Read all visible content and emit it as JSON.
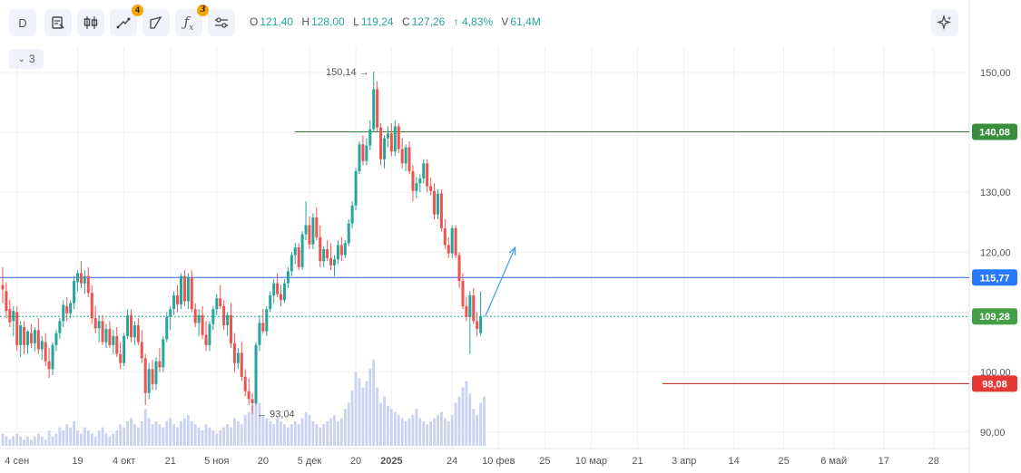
{
  "toolbar": {
    "interval": "D",
    "indicators_badge": "4",
    "formula_badge": "3",
    "collapse_count": "3"
  },
  "ohlc": {
    "o_label": "O",
    "o": "121,40",
    "h_label": "H",
    "h": "128,00",
    "l_label": "L",
    "l": "119,24",
    "c_label": "C",
    "c": "127,26",
    "change": "↑ 4,83%",
    "v_label": "V",
    "v": "61,4M"
  },
  "colors": {
    "up": "#26a69a",
    "down": "#ef5350",
    "volume": "#c9d3f0",
    "hline_green": "#2e7d32",
    "hline_blue": "#2962ff",
    "hline_dotted": "#26a69a",
    "hline_red": "#b71c1c",
    "arrow": "#4aa3df"
  },
  "chart_data": {
    "type": "candlestick",
    "ylim": [
      88,
      153
    ],
    "y_ticks": [
      "150,00",
      "140,00",
      "130,00",
      "120,00",
      "110,00",
      "100,00",
      "90,00"
    ],
    "y_tick_values": [
      150,
      140,
      130,
      120,
      110,
      100,
      90
    ],
    "x_ticks": [
      "4 сен",
      "19",
      "4 окт",
      "21",
      "5 ноя",
      "20",
      "5 дек",
      "20",
      "2025",
      "24",
      "10 фев",
      "25",
      "10 мар",
      "21",
      "3 апр",
      "14",
      "25",
      "6 май",
      "17",
      "28"
    ],
    "x_tick_index": [
      4,
      21,
      34,
      47,
      60,
      73,
      86,
      99,
      109,
      126,
      139,
      152,
      165,
      178,
      191,
      205,
      219,
      233,
      247,
      261
    ],
    "candles": [
      [
        114.5,
        117.5,
        111.5,
        113.8
      ],
      [
        113.5,
        115.0,
        109.0,
        110.2
      ],
      [
        110.5,
        112.0,
        107.5,
        108.3
      ],
      [
        108.5,
        111.0,
        106.0,
        110.2
      ],
      [
        110.0,
        111.0,
        103.5,
        104.5
      ],
      [
        104.5,
        108.5,
        102.5,
        107.8
      ],
      [
        107.5,
        108.5,
        103.0,
        104.5
      ],
      [
        104.5,
        107.0,
        103.0,
        106.8
      ],
      [
        106.5,
        108.0,
        104.0,
        104.8
      ],
      [
        104.8,
        107.5,
        103.5,
        107.0
      ],
      [
        107.0,
        109.0,
        103.0,
        103.8
      ],
      [
        103.8,
        106.0,
        102.0,
        105.2
      ],
      [
        105.0,
        106.5,
        101.0,
        101.8
      ],
      [
        101.8,
        104.0,
        99.0,
        100.5
      ],
      [
        100.5,
        105.0,
        99.5,
        104.5
      ],
      [
        104.5,
        107.0,
        103.5,
        106.5
      ],
      [
        106.5,
        109.0,
        105.5,
        108.5
      ],
      [
        108.5,
        112.0,
        107.5,
        111.2
      ],
      [
        111.0,
        112.5,
        108.5,
        109.8
      ],
      [
        109.8,
        112.0,
        109.0,
        111.5
      ],
      [
        111.5,
        116.0,
        110.5,
        115.2
      ],
      [
        115.0,
        117.0,
        113.5,
        116.5
      ],
      [
        116.5,
        118.5,
        114.0,
        114.8
      ],
      [
        114.8,
        117.0,
        113.0,
        116.0
      ],
      [
        116.0,
        117.5,
        112.5,
        113.2
      ],
      [
        113.2,
        114.5,
        108.0,
        109.0
      ],
      [
        109.0,
        111.0,
        106.5,
        107.3
      ],
      [
        107.3,
        109.5,
        105.0,
        108.5
      ],
      [
        108.5,
        109.5,
        104.5,
        105.0
      ],
      [
        105.0,
        108.0,
        104.0,
        107.2
      ],
      [
        107.2,
        108.5,
        104.0,
        104.5
      ],
      [
        104.5,
        107.0,
        103.0,
        106.0
      ],
      [
        106.0,
        107.5,
        102.5,
        103.0
      ],
      [
        103.0,
        105.0,
        100.5,
        101.5
      ],
      [
        101.5,
        106.5,
        101.0,
        106.0
      ],
      [
        106.0,
        110.5,
        105.5,
        109.5
      ],
      [
        109.5,
        110.5,
        105.0,
        105.8
      ],
      [
        105.8,
        108.5,
        104.5,
        107.8
      ],
      [
        107.8,
        109.0,
        104.5,
        105.0
      ],
      [
        105.0,
        107.0,
        101.5,
        102.3
      ],
      [
        102.3,
        103.0,
        94.5,
        96.5
      ],
      [
        96.5,
        101.5,
        95.5,
        100.5
      ],
      [
        100.5,
        102.0,
        97.0,
        98.0
      ],
      [
        98.0,
        102.5,
        97.0,
        101.8
      ],
      [
        101.8,
        104.0,
        100.0,
        100.8
      ],
      [
        100.8,
        106.0,
        100.0,
        105.5
      ],
      [
        105.5,
        110.0,
        105.0,
        109.2
      ],
      [
        109.2,
        111.0,
        107.0,
        110.5
      ],
      [
        110.5,
        113.5,
        109.5,
        112.8
      ],
      [
        112.8,
        114.5,
        110.0,
        111.3
      ],
      [
        111.3,
        116.5,
        110.5,
        116.0
      ],
      [
        116.0,
        117.0,
        111.0,
        111.8
      ],
      [
        111.8,
        116.5,
        110.5,
        115.8
      ],
      [
        115.8,
        117.0,
        110.0,
        110.5
      ],
      [
        110.5,
        111.5,
        107.5,
        108.2
      ],
      [
        108.2,
        110.5,
        106.0,
        109.5
      ],
      [
        109.5,
        111.0,
        105.5,
        106.2
      ],
      [
        106.2,
        108.5,
        103.5,
        104.5
      ],
      [
        104.5,
        108.5,
        103.5,
        108.0
      ],
      [
        108.0,
        111.0,
        107.0,
        110.5
      ],
      [
        110.5,
        113.0,
        109.5,
        112.3
      ],
      [
        112.3,
        114.5,
        110.5,
        111.0
      ],
      [
        111.0,
        112.0,
        107.0,
        107.8
      ],
      [
        107.8,
        110.0,
        106.0,
        109.5
      ],
      [
        109.5,
        111.5,
        104.0,
        104.8
      ],
      [
        104.8,
        106.5,
        100.0,
        101.5
      ],
      [
        101.5,
        104.0,
        100.5,
        103.2
      ],
      [
        103.2,
        105.0,
        98.5,
        99.2
      ],
      [
        99.2,
        100.5,
        96.0,
        96.8
      ],
      [
        96.8,
        99.0,
        94.5,
        95.5
      ],
      [
        95.5,
        96.5,
        93.04,
        94.8
      ],
      [
        94.8,
        105.0,
        94.5,
        104.5
      ],
      [
        104.5,
        109.5,
        103.5,
        108.2
      ],
      [
        108.2,
        110.5,
        106.5,
        106.8
      ],
      [
        106.8,
        111.0,
        106.0,
        110.5
      ],
      [
        110.5,
        113.5,
        110.0,
        112.8
      ],
      [
        112.8,
        115.5,
        111.5,
        114.8
      ],
      [
        114.8,
        116.5,
        112.5,
        113.0
      ],
      [
        113.0,
        114.5,
        111.0,
        112.0
      ],
      [
        112.0,
        115.5,
        111.5,
        114.8
      ],
      [
        114.8,
        117.5,
        114.0,
        116.8
      ],
      [
        116.8,
        120.0,
        116.0,
        119.5
      ],
      [
        119.5,
        121.5,
        118.0,
        120.8
      ],
      [
        120.8,
        121.5,
        117.0,
        117.5
      ],
      [
        117.5,
        123.5,
        117.0,
        123.0
      ],
      [
        123.0,
        128.5,
        122.0,
        124.5
      ],
      [
        124.5,
        126.0,
        120.5,
        121.3
      ],
      [
        121.3,
        126.5,
        120.5,
        125.8
      ],
      [
        125.8,
        127.5,
        122.0,
        122.5
      ],
      [
        122.5,
        124.5,
        117.5,
        118.5
      ],
      [
        118.5,
        121.0,
        117.5,
        120.5
      ],
      [
        120.5,
        122.0,
        118.5,
        119.0
      ],
      [
        119.0,
        121.5,
        117.0,
        117.8
      ],
      [
        117.8,
        119.5,
        116.0,
        118.8
      ],
      [
        118.8,
        122.0,
        118.0,
        121.2
      ],
      [
        121.2,
        122.5,
        118.5,
        119.5
      ],
      [
        119.5,
        122.0,
        119.0,
        121.5
      ],
      [
        121.5,
        125.5,
        121.0,
        124.8
      ],
      [
        124.8,
        128.5,
        124.0,
        127.8
      ],
      [
        127.8,
        134.0,
        127.0,
        133.5
      ],
      [
        133.5,
        138.5,
        133.0,
        138.0
      ],
      [
        138.0,
        139.5,
        134.5,
        135.2
      ],
      [
        135.2,
        139.0,
        134.5,
        137.8
      ],
      [
        137.8,
        142.0,
        137.0,
        140.5
      ],
      [
        140.5,
        150.14,
        140.0,
        147.2
      ],
      [
        147.2,
        148.5,
        140.0,
        140.8
      ],
      [
        140.8,
        141.5,
        134.5,
        135.5
      ],
      [
        135.5,
        139.5,
        134.0,
        139.0
      ],
      [
        139.0,
        141.0,
        137.5,
        139.8
      ],
      [
        139.8,
        141.5,
        136.0,
        136.8
      ],
      [
        136.8,
        142.0,
        136.0,
        141.0
      ],
      [
        141.0,
        141.5,
        136.5,
        137.2
      ],
      [
        137.2,
        139.0,
        134.0,
        134.8
      ],
      [
        134.8,
        138.0,
        133.5,
        137.5
      ],
      [
        137.5,
        138.5,
        133.0,
        133.5
      ],
      [
        133.5,
        134.5,
        128.5,
        130.2
      ],
      [
        130.2,
        132.5,
        129.0,
        131.5
      ],
      [
        131.5,
        133.0,
        130.0,
        132.3
      ],
      [
        132.3,
        135.5,
        131.5,
        134.8
      ],
      [
        134.8,
        135.5,
        130.0,
        131.0
      ],
      [
        131.0,
        132.5,
        129.5,
        130.2
      ],
      [
        130.2,
        131.5,
        125.5,
        126.3
      ],
      [
        126.3,
        130.5,
        125.5,
        129.8
      ],
      [
        129.8,
        130.5,
        123.5,
        124.0
      ],
      [
        124.0,
        125.5,
        120.5,
        121.2
      ],
      [
        121.2,
        122.5,
        119.0,
        119.8
      ],
      [
        119.8,
        124.5,
        119.0,
        124.0
      ],
      [
        124.0,
        124.5,
        119.0,
        119.5
      ],
      [
        119.5,
        120.0,
        114.0,
        115.2
      ],
      [
        115.2,
        116.5,
        110.5,
        111.0
      ],
      [
        111.0,
        112.5,
        108.5,
        109.2
      ],
      [
        109.2,
        113.5,
        103.0,
        112.8
      ],
      [
        112.8,
        114.0,
        108.0,
        108.5
      ],
      [
        108.5,
        110.0,
        106.0,
        107.2
      ],
      [
        106.5,
        113.5,
        106.0,
        109.3
      ]
    ],
    "volume": [
      4,
      3,
      2,
      3,
      4,
      3,
      2,
      3,
      2,
      3,
      4,
      3,
      2,
      5,
      3,
      4,
      6,
      5,
      7,
      6,
      8,
      5,
      4,
      6,
      5,
      4,
      3,
      5,
      6,
      4,
      3,
      4,
      5,
      7,
      6,
      8,
      9,
      7,
      6,
      8,
      12,
      9,
      7,
      8,
      7,
      6,
      8,
      9,
      7,
      6,
      8,
      9,
      10,
      8,
      7,
      6,
      5,
      7,
      6,
      5,
      4,
      5,
      6,
      7,
      6,
      9,
      8,
      7,
      10,
      11,
      13,
      15,
      14,
      10,
      9,
      8,
      7,
      9,
      8,
      7,
      6,
      7,
      8,
      7,
      9,
      11,
      10,
      8,
      7,
      6,
      7,
      8,
      9,
      10,
      8,
      9,
      12,
      14,
      18,
      24,
      22,
      19,
      21,
      25,
      28,
      19,
      14,
      16,
      13,
      12,
      11,
      10,
      9,
      8,
      9,
      10,
      12,
      9,
      8,
      7,
      8,
      9,
      10,
      11,
      9,
      8,
      10,
      14,
      16,
      19,
      21,
      17,
      12,
      10,
      14,
      16
    ],
    "levels": {
      "green": 140.08,
      "blue": 115.77,
      "dotted": 109.28,
      "red": 98.08
    },
    "level_labels": {
      "green": "140,08",
      "blue": "115,77",
      "dotted": "109,28",
      "red": "98,08"
    },
    "annotation_high": "150,14",
    "annotation_low": "93,04",
    "arrow_target": 120.8
  }
}
